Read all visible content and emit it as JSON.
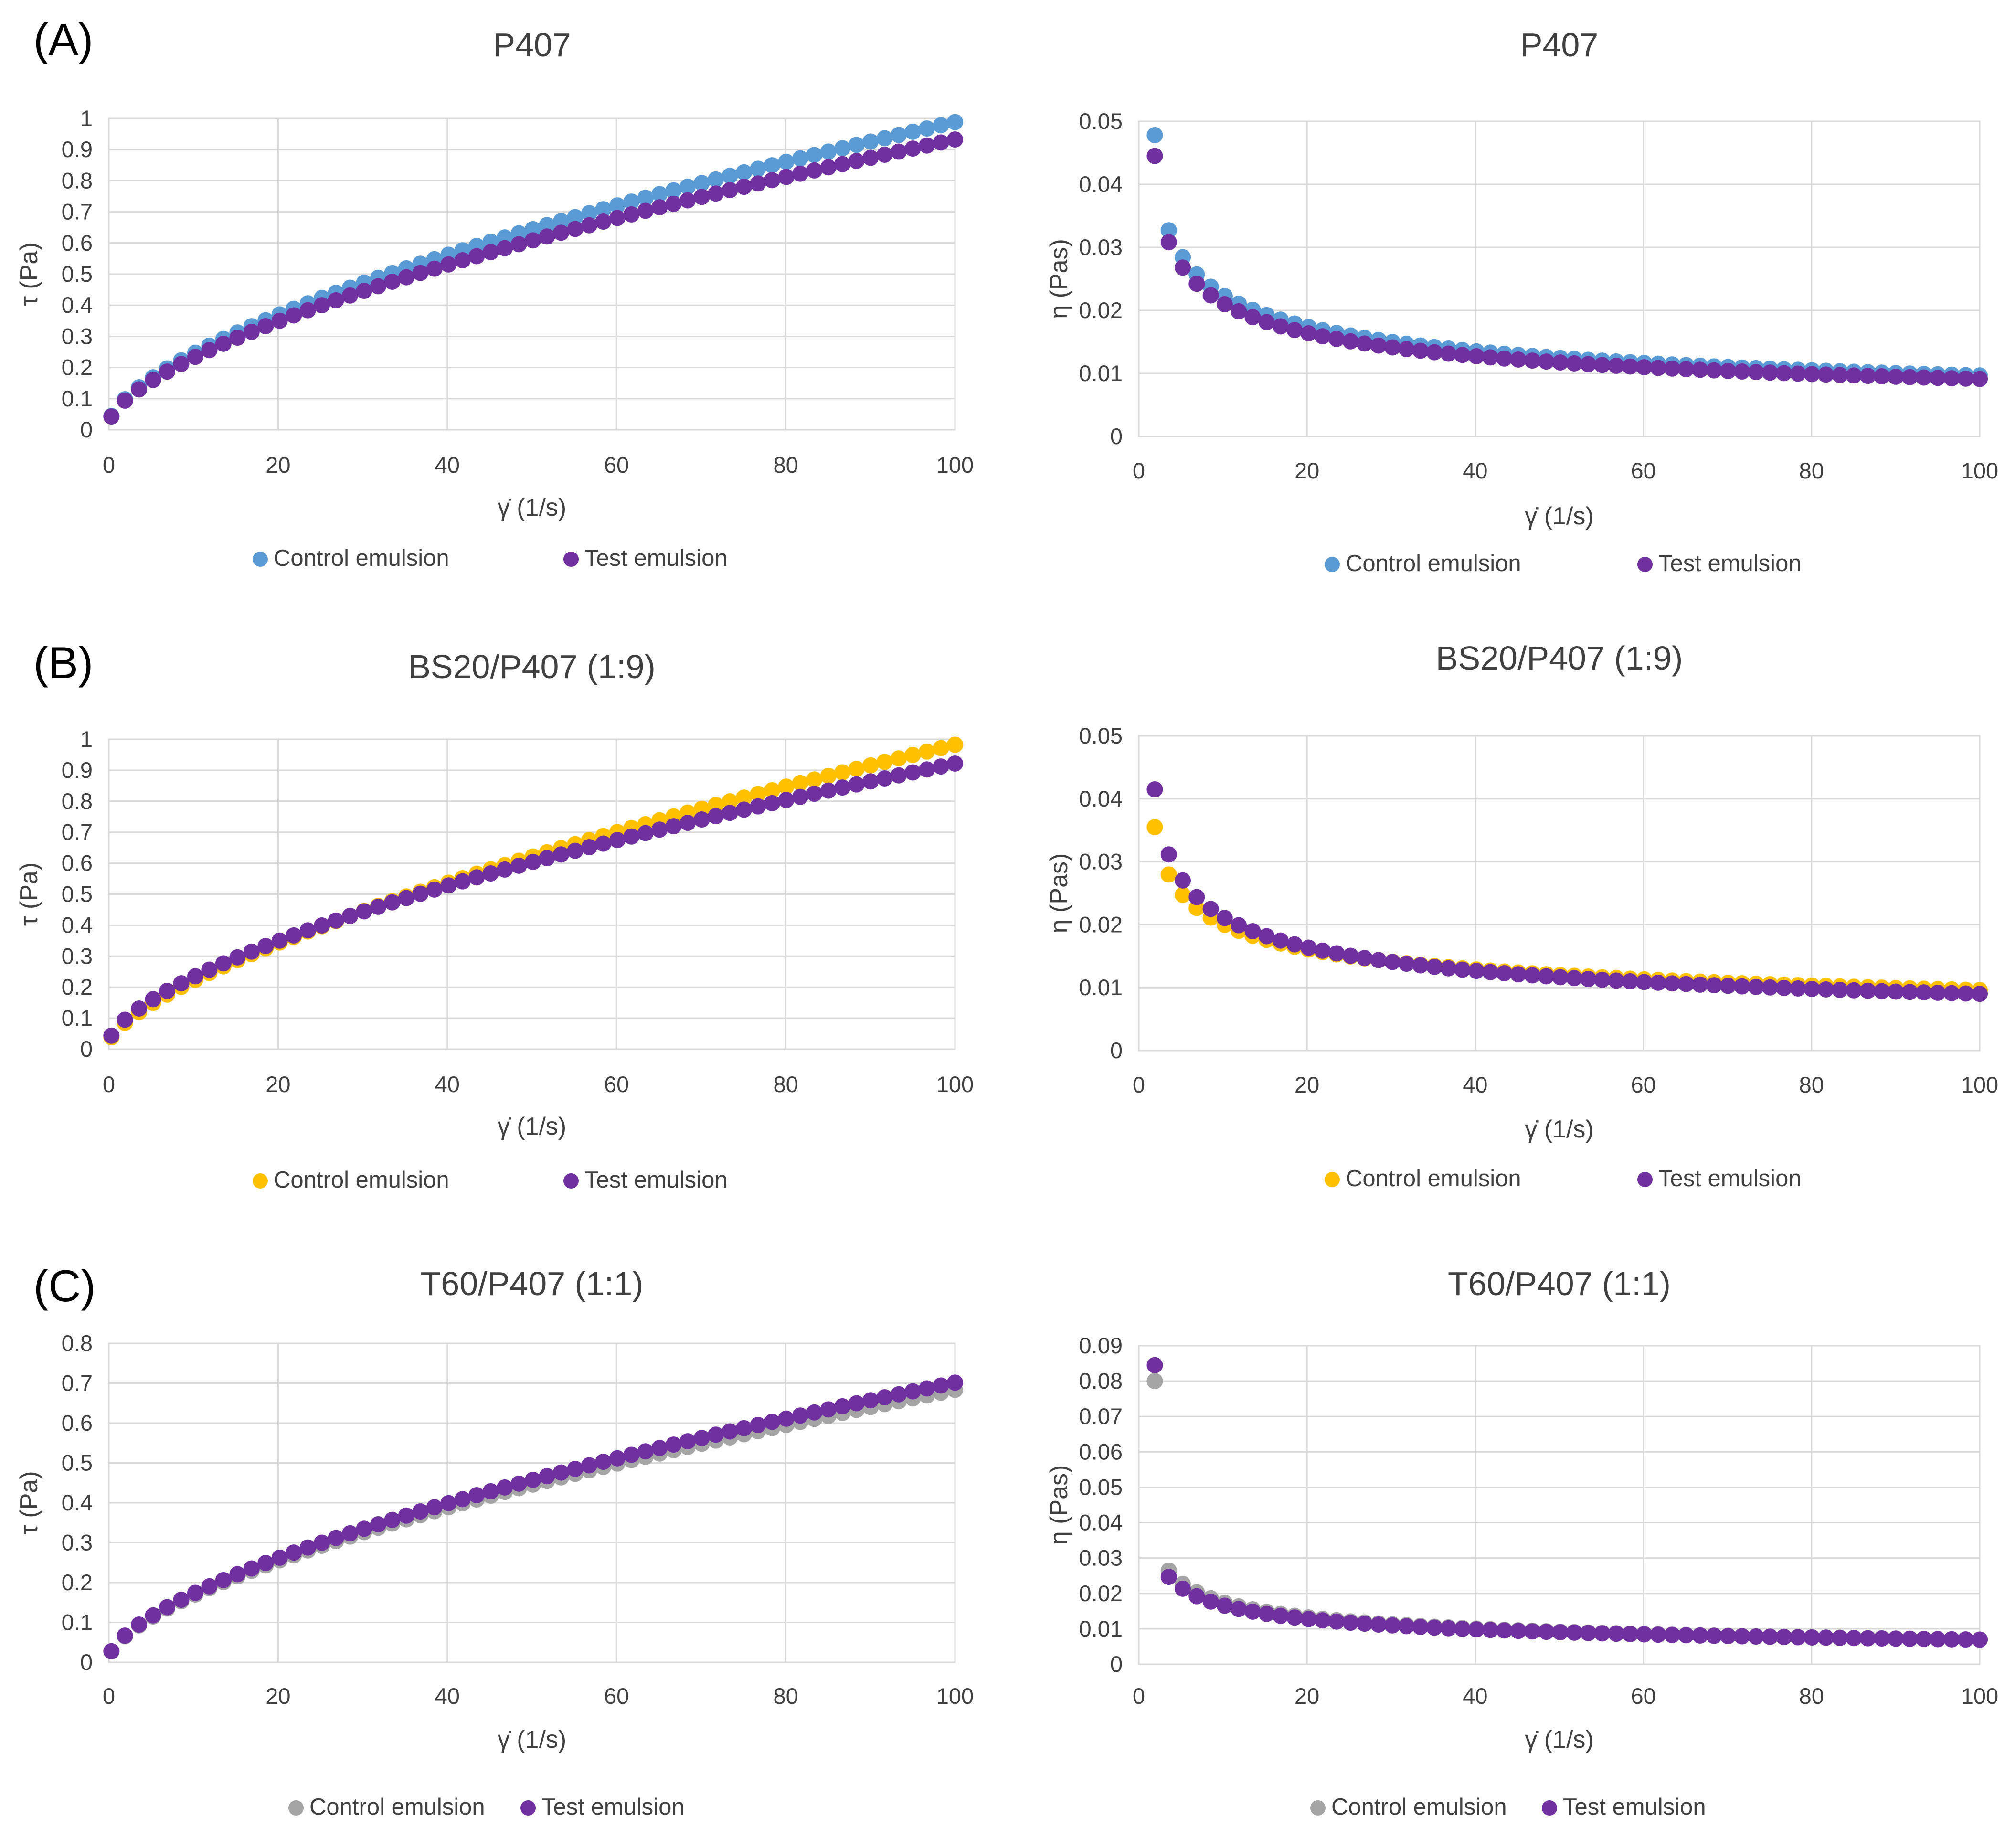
{
  "panel_labels": [
    "(A)",
    "(B)",
    "(C)"
  ],
  "colors": {
    "control_blue": "#5b9bd5",
    "control_yellow": "#ffc000",
    "control_gray": "#a5a5a5",
    "test_purple": "#7030a0"
  },
  "chart_data": [
    {
      "type": "scatter",
      "title": "P407",
      "xlabel": "γ̇  (1/s)",
      "ylabel": "τ (Pa)",
      "xlim": [
        0,
        100
      ],
      "ylim": [
        0,
        1
      ],
      "xticks": [
        "0",
        "20",
        "40",
        "60",
        "80",
        "100"
      ],
      "yticks": [
        "0",
        "0.1",
        "0.2",
        "0.3",
        "0.4",
        "0.5",
        "0.6",
        "0.7",
        "0.8",
        "0.9",
        "1"
      ],
      "grid": true,
      "legend_position": "bottom",
      "series": [
        {
          "name": "Control emulsion",
          "color": "#5b9bd5",
          "model": "power",
          "params": {
            "a0": 0.02,
            "k": 0.052,
            "n": 0.635,
            "scale": 1.0,
            "x0": 0.3
          }
        },
        {
          "name": "Test emulsion",
          "color": "#7030a0",
          "model": "power",
          "params": {
            "a0": 0.02,
            "k": 0.049,
            "n": 0.635,
            "scale": 1.0,
            "x0": 0.3
          }
        }
      ]
    },
    {
      "type": "scatter",
      "title": "P407",
      "xlabel": "γ̇  (1/s)",
      "ylabel": "η (Pas)",
      "xlim": [
        0,
        100
      ],
      "ylim": [
        0,
        0.05
      ],
      "xticks": [
        "0",
        "20",
        "40",
        "60",
        "80",
        "100"
      ],
      "yticks": [
        "0",
        "0.01",
        "0.02",
        "0.03",
        "0.04",
        "0.05"
      ],
      "grid": true,
      "legend_position": "bottom",
      "series": [
        {
          "name": "Control emulsion",
          "color": "#5b9bd5",
          "model": "viscosity",
          "first": 0.0478,
          "params": {
            "k": 0.052,
            "n": 0.635
          }
        },
        {
          "name": "Test emulsion",
          "color": "#7030a0",
          "model": "viscosity",
          "first": 0.0445,
          "params": {
            "k": 0.049,
            "n": 0.635
          }
        }
      ]
    },
    {
      "type": "scatter",
      "title": "BS20/P407 (1:9)",
      "xlabel": "γ̇  (1/s)",
      "ylabel": "τ (Pa)",
      "xlim": [
        0,
        100
      ],
      "ylim": [
        0,
        1
      ],
      "xticks": [
        "0",
        "20",
        "40",
        "60",
        "80",
        "100"
      ],
      "yticks": [
        "0",
        "0.1",
        "0.2",
        "0.3",
        "0.4",
        "0.5",
        "0.6",
        "0.7",
        "0.8",
        "0.9",
        "1"
      ],
      "grid": true,
      "legend_position": "bottom",
      "series": [
        {
          "name": "Control emulsion",
          "color": "#ffc000",
          "model": "power",
          "params": {
            "a0": 0.02,
            "k": 0.042,
            "n": 0.68,
            "scale": 1.0,
            "x0": 0.3
          }
        },
        {
          "name": "Test emulsion",
          "color": "#7030a0",
          "model": "power",
          "params": {
            "a0": 0.02,
            "k": 0.05,
            "n": 0.628,
            "scale": 1.0,
            "x0": 0.3
          }
        }
      ]
    },
    {
      "type": "scatter",
      "title": "BS20/P407 (1:9)",
      "xlabel": "γ̇  (1/s)",
      "ylabel": "η (Pas)",
      "xlim": [
        0,
        100
      ],
      "ylim": [
        0,
        0.05
      ],
      "xticks": [
        "0",
        "20",
        "40",
        "60",
        "80",
        "100"
      ],
      "yticks": [
        "0",
        "0.01",
        "0.02",
        "0.03",
        "0.04",
        "0.05"
      ],
      "grid": true,
      "legend_position": "bottom",
      "series": [
        {
          "name": "Control emulsion",
          "color": "#ffc000",
          "model": "viscosity",
          "first": 0.0355,
          "params": {
            "k": 0.042,
            "n": 0.68
          }
        },
        {
          "name": "Test emulsion",
          "color": "#7030a0",
          "model": "viscosity",
          "first": 0.0415,
          "params": {
            "k": 0.05,
            "n": 0.628
          }
        }
      ]
    },
    {
      "type": "scatter",
      "title": "T60/P407 (1:1)",
      "xlabel": "γ̇  (1/s)",
      "ylabel": "τ (Pa)",
      "xlim": [
        0,
        100
      ],
      "ylim": [
        0,
        0.8
      ],
      "xticks": [
        "0",
        "20",
        "40",
        "60",
        "80",
        "100"
      ],
      "yticks": [
        "0",
        "0.1",
        "0.2",
        "0.3",
        "0.4",
        "0.5",
        "0.6",
        "0.7",
        "0.8"
      ],
      "grid": true,
      "legend_position": "bottom",
      "series": [
        {
          "name": "Control emulsion",
          "color": "#a5a5a5",
          "model": "power",
          "params": {
            "a0": 0.01,
            "k": 0.037,
            "n": 0.63,
            "scale": 1.0,
            "x0": 0.3
          }
        },
        {
          "name": "Test emulsion",
          "color": "#7030a0",
          "model": "power",
          "params": {
            "a0": 0.01,
            "k": 0.038,
            "n": 0.63,
            "scale": 1.0,
            "x0": 0.3
          }
        }
      ]
    },
    {
      "type": "scatter",
      "title": "T60/P407 (1:1)",
      "xlabel": "γ̇  (1/s)",
      "ylabel": "η (Pas)",
      "xlim": [
        0,
        100
      ],
      "ylim": [
        0,
        0.09
      ],
      "xticks": [
        "0",
        "20",
        "40",
        "60",
        "80",
        "100"
      ],
      "yticks": [
        "0",
        "0.01",
        "0.02",
        "0.03",
        "0.04",
        "0.05",
        "0.06",
        "0.07",
        "0.08",
        "0.09"
      ],
      "grid": true,
      "legend_position": "bottom",
      "series": [
        {
          "name": "Control emulsion",
          "color": "#a5a5a5",
          "model": "viscosity",
          "first": 0.08,
          "params": {
            "k": 0.044,
            "n": 0.6
          }
        },
        {
          "name": "Test emulsion",
          "color": "#7030a0",
          "model": "viscosity",
          "first": 0.0845,
          "params": {
            "k": 0.04,
            "n": 0.62
          }
        }
      ]
    }
  ]
}
